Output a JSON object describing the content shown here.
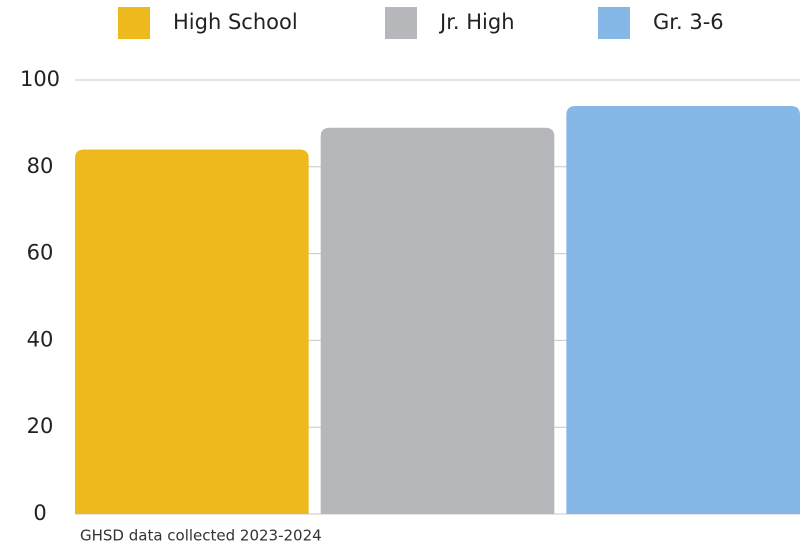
{
  "chart_data": {
    "type": "bar",
    "series": [
      {
        "name": "High School",
        "color": "#edb91c",
        "values": [
          84
        ]
      },
      {
        "name": "Jr. High",
        "color": "#b6b7ba",
        "values": [
          89
        ]
      },
      {
        "name": "Gr. 3-6",
        "color": "#85b8e6",
        "values": [
          94
        ]
      }
    ],
    "ylim": [
      0,
      100
    ],
    "yticks": [
      0,
      20,
      40,
      60,
      80,
      100
    ],
    "grid": true,
    "legend": "top",
    "annotation": "GHSD data collected 2023-2024"
  }
}
